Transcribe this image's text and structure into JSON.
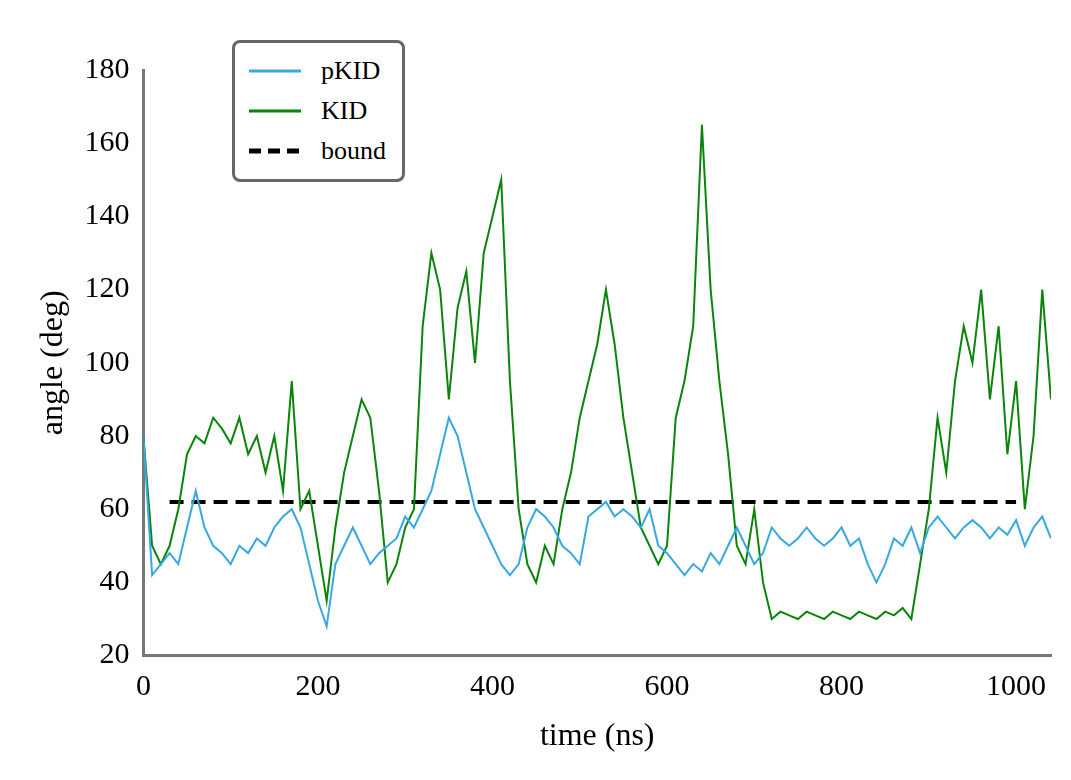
{
  "chart_data": {
    "type": "line",
    "x_label": "time (ns)",
    "y_label": "angle (deg)",
    "xlim": [
      0,
      1040
    ],
    "xticks": [
      0,
      200,
      400,
      600,
      800,
      1000
    ],
    "ylim": [
      20,
      180
    ],
    "yticks": [
      20,
      40,
      60,
      80,
      100,
      120,
      140,
      160,
      180
    ],
    "grid": false,
    "legend": "upper left",
    "x": [
      0,
      10,
      20,
      30,
      40,
      50,
      60,
      70,
      80,
      90,
      100,
      110,
      120,
      130,
      140,
      150,
      160,
      170,
      180,
      190,
      200,
      210,
      220,
      230,
      240,
      250,
      260,
      270,
      280,
      290,
      300,
      310,
      320,
      330,
      340,
      350,
      360,
      370,
      380,
      390,
      400,
      410,
      420,
      430,
      440,
      450,
      460,
      470,
      480,
      490,
      500,
      510,
      520,
      530,
      540,
      550,
      560,
      570,
      580,
      590,
      600,
      610,
      620,
      630,
      640,
      650,
      660,
      670,
      680,
      690,
      700,
      710,
      720,
      730,
      740,
      750,
      760,
      770,
      780,
      790,
      800,
      810,
      820,
      830,
      840,
      850,
      860,
      870,
      880,
      890,
      900,
      910,
      920,
      930,
      940,
      950,
      960,
      970,
      980,
      990,
      1000,
      1010,
      1020,
      1030,
      1040
    ],
    "series": [
      {
        "name": "pKID",
        "color": "#36a9e1",
        "line_style": "solid",
        "marker": "none",
        "values": [
          80,
          42,
          45,
          48,
          45,
          55,
          65,
          55,
          50,
          48,
          45,
          50,
          48,
          52,
          50,
          55,
          58,
          60,
          55,
          45,
          35,
          28,
          45,
          50,
          55,
          50,
          45,
          48,
          50,
          52,
          58,
          55,
          60,
          65,
          75,
          85,
          80,
          70,
          60,
          55,
          50,
          45,
          42,
          45,
          55,
          60,
          58,
          55,
          50,
          48,
          45,
          58,
          60,
          62,
          58,
          60,
          58,
          55,
          60,
          50,
          48,
          45,
          42,
          45,
          43,
          48,
          45,
          50,
          55,
          50,
          45,
          48,
          55,
          52,
          50,
          52,
          55,
          52,
          50,
          52,
          55,
          50,
          52,
          45,
          40,
          45,
          52,
          50,
          55,
          48,
          55,
          58,
          55,
          52,
          55,
          57,
          55,
          52,
          55,
          53,
          57,
          50,
          55,
          58,
          52
        ]
      },
      {
        "name": "KID",
        "color": "#0a840a",
        "line_style": "solid",
        "marker": "none",
        "values": [
          80,
          50,
          45,
          50,
          60,
          75,
          80,
          78,
          85,
          82,
          78,
          85,
          75,
          80,
          70,
          80,
          65,
          95,
          60,
          65,
          50,
          35,
          55,
          70,
          80,
          90,
          85,
          65,
          40,
          45,
          55,
          60,
          110,
          130,
          120,
          90,
          115,
          125,
          100,
          130,
          140,
          150,
          95,
          60,
          45,
          40,
          50,
          45,
          60,
          70,
          85,
          95,
          105,
          120,
          105,
          85,
          70,
          55,
          50,
          45,
          50,
          85,
          95,
          110,
          165,
          120,
          95,
          75,
          50,
          45,
          60,
          40,
          30,
          32,
          31,
          30,
          32,
          31,
          30,
          32,
          31,
          30,
          32,
          31,
          30,
          32,
          31,
          33,
          30,
          45,
          60,
          85,
          70,
          95,
          110,
          100,
          120,
          90,
          110,
          75,
          95,
          60,
          80,
          120,
          90
        ]
      },
      {
        "name": "bound",
        "color": "#000000",
        "line_style": "dashed",
        "marker": "none",
        "values": [
          null,
          null,
          null,
          62,
          62,
          62,
          62,
          62,
          62,
          62,
          62,
          62,
          62,
          62,
          62,
          62,
          62,
          62,
          62,
          62,
          62,
          62,
          62,
          62,
          62,
          62,
          62,
          62,
          62,
          62,
          62,
          62,
          62,
          62,
          62,
          62,
          62,
          62,
          62,
          62,
          62,
          62,
          62,
          62,
          62,
          62,
          62,
          62,
          62,
          62,
          62,
          62,
          62,
          62,
          62,
          62,
          62,
          62,
          62,
          62,
          62,
          62,
          62,
          62,
          62,
          62,
          62,
          62,
          62,
          62,
          62,
          62,
          62,
          62,
          62,
          62,
          62,
          62,
          62,
          62,
          62,
          62,
          62,
          62,
          62,
          62,
          62,
          62,
          62,
          62,
          62,
          62,
          62,
          62,
          62,
          62,
          62,
          62,
          62,
          62,
          62,
          null,
          null,
          null,
          null
        ]
      }
    ]
  }
}
